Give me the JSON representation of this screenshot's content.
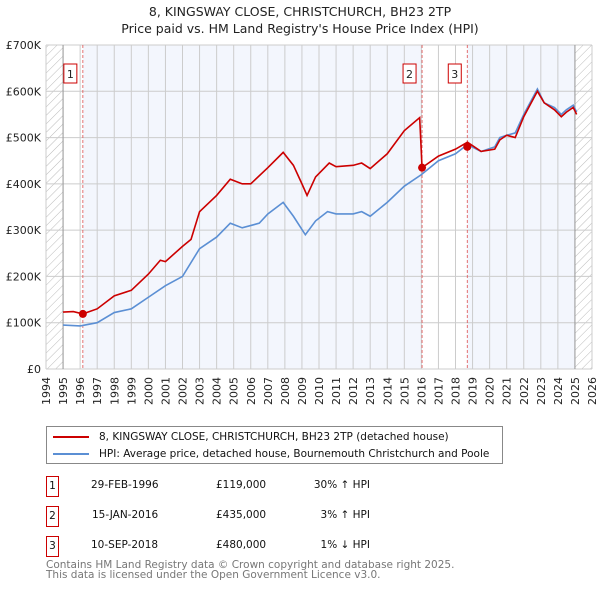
{
  "chart_data": {
    "type": "line",
    "title": "8, KINGSWAY CLOSE, CHRISTCHURCH, BH23 2TP",
    "subtitle": "Price paid vs. HM Land Registry's House Price Index (HPI)",
    "xlim": [
      1994,
      2026
    ],
    "ylim": [
      0,
      700000
    ],
    "y_ticks": [
      {
        "v": 0,
        "label": "£0"
      },
      {
        "v": 100000,
        "label": "£100K"
      },
      {
        "v": 200000,
        "label": "£200K"
      },
      {
        "v": 300000,
        "label": "£300K"
      },
      {
        "v": 400000,
        "label": "£400K"
      },
      {
        "v": 500000,
        "label": "£500K"
      },
      {
        "v": 600000,
        "label": "£600K"
      },
      {
        "v": 700000,
        "label": "£700K"
      }
    ],
    "x_ticks": [
      "1994",
      "1995",
      "1996",
      "1997",
      "1998",
      "1999",
      "2000",
      "2001",
      "2002",
      "2003",
      "2004",
      "2005",
      "2006",
      "2007",
      "2008",
      "2009",
      "2010",
      "2011",
      "2012",
      "2013",
      "2014",
      "2015",
      "2016",
      "2017",
      "2018",
      "2019",
      "2020",
      "2021",
      "2022",
      "2023",
      "2024",
      "2025",
      "2026"
    ],
    "grid": true,
    "series": [
      {
        "name": "8, KINGSWAY CLOSE, CHRISTCHURCH, BH23 2TP (detached house)",
        "color": "#cc0000",
        "x": [
          1995,
          1995.6,
          1996.16,
          1997,
          1998,
          1999,
          2000,
          2000.7,
          2001,
          2002,
          2002.5,
          2003,
          2004,
          2004.8,
          2005.5,
          2006,
          2007,
          2007.9,
          2008.5,
          2009,
          2009.3,
          2009.8,
          2010.6,
          2011,
          2012,
          2012.5,
          2013,
          2014,
          2015,
          2015.9,
          2016.04,
          2017,
          2018,
          2018.7,
          2019.5,
          2020.3,
          2020.6,
          2021,
          2021.5,
          2022,
          2022.8,
          2023.2,
          2023.8,
          2024.2,
          2024.5,
          2024.9,
          2025.1
        ],
        "y": [
          123000,
          124000,
          119000,
          130000,
          158000,
          170000,
          205000,
          235000,
          232000,
          265000,
          280000,
          340000,
          375000,
          410000,
          400000,
          400000,
          435000,
          468000,
          440000,
          400000,
          375000,
          415000,
          445000,
          437000,
          440000,
          445000,
          433000,
          465000,
          515000,
          543000,
          435000,
          460000,
          475000,
          490000,
          470000,
          475000,
          495000,
          505000,
          500000,
          545000,
          600000,
          575000,
          560000,
          545000,
          555000,
          565000,
          550000
        ]
      },
      {
        "name": "HPI: Average price, detached house, Bournemouth Christchurch and Poole",
        "color": "#5b8fd4",
        "x": [
          1995,
          1996,
          1997,
          1998,
          1999,
          2000,
          2001,
          2002,
          2003,
          2004,
          2004.8,
          2005.5,
          2006.5,
          2007,
          2007.9,
          2008.5,
          2009.2,
          2009.8,
          2010.5,
          2011,
          2012,
          2012.5,
          2013,
          2014,
          2015,
          2016,
          2017,
          2018,
          2018.7,
          2019.5,
          2020.3,
          2020.6,
          2021,
          2021.5,
          2022,
          2022.8,
          2023.2,
          2023.8,
          2024.2,
          2024.5,
          2024.9,
          2025.1
        ],
        "y": [
          95000,
          93000,
          100000,
          122000,
          130000,
          155000,
          180000,
          200000,
          260000,
          285000,
          315000,
          305000,
          315000,
          335000,
          360000,
          330000,
          290000,
          320000,
          340000,
          335000,
          335000,
          340000,
          330000,
          360000,
          395000,
          420000,
          450000,
          465000,
          485000,
          470000,
          480000,
          500000,
          505000,
          510000,
          550000,
          605000,
          575000,
          565000,
          550000,
          560000,
          570000,
          555000
        ]
      }
    ],
    "sales": [
      {
        "id": "1",
        "x": 1996.16,
        "y": 119000,
        "date": "29-FEB-1996",
        "price": "£119,000",
        "hpi": "30% ↑ HPI"
      },
      {
        "id": "2",
        "x": 2016.04,
        "y": 435000,
        "date": "15-JAN-2016",
        "price": "£435,000",
        "hpi": "3% ↑ HPI"
      },
      {
        "id": "3",
        "x": 2018.69,
        "y": 480000,
        "date": "10-SEP-2018",
        "price": "£480,000",
        "hpi": "1% ↓ HPI"
      }
    ],
    "data_range": [
      1995,
      2025
    ],
    "legend_position": "below"
  },
  "footer": {
    "line1": "Contains HM Land Registry data © Crown copyright and database right 2025.",
    "line2": "This data is licensed under the Open Government Licence v3.0."
  }
}
